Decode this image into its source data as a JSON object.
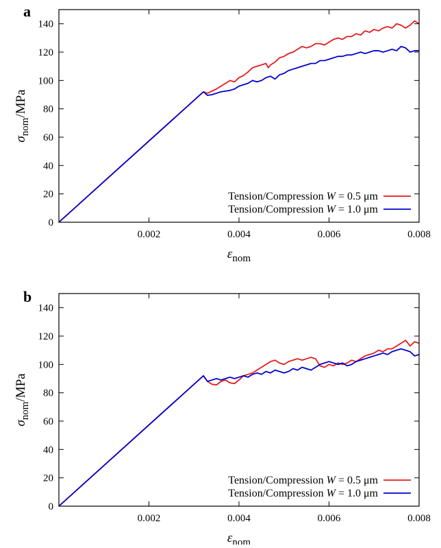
{
  "chart_data": [
    {
      "panel_label": "a",
      "type": "line",
      "xlabel": "ε_nom",
      "ylabel": "σ_nom/MPa",
      "xlim": [
        0,
        0.008
      ],
      "ylim": [
        0,
        150
      ],
      "x_ticks": [
        0.002,
        0.004,
        0.006,
        0.008
      ],
      "x_tick_labels": [
        "0.002",
        "0.004",
        "0.006",
        "0.008"
      ],
      "y_ticks": [
        0,
        20,
        40,
        60,
        80,
        100,
        120,
        140
      ],
      "y_tick_labels": [
        "0",
        "20",
        "40",
        "60",
        "80",
        "100",
        "120",
        "140"
      ],
      "legend_position": "bottom-right",
      "grid": false,
      "series": [
        {
          "name": "Tension/Compression W = 0.5 μm",
          "color": "#e41a1c",
          "points": [
            [
              0,
              0
            ],
            [
              0.00321,
              92
            ],
            [
              0.0033,
              91
            ],
            [
              0.0034,
              92.5
            ],
            [
              0.0035,
              94
            ],
            [
              0.0036,
              96
            ],
            [
              0.0037,
              98
            ],
            [
              0.0038,
              100
            ],
            [
              0.0039,
              99
            ],
            [
              0.004,
              102
            ],
            [
              0.0041,
              103.5
            ],
            [
              0.0042,
              106
            ],
            [
              0.0043,
              109
            ],
            [
              0.0044,
              110
            ],
            [
              0.0045,
              111
            ],
            [
              0.0046,
              112
            ],
            [
              0.00465,
              109
            ],
            [
              0.0047,
              111
            ],
            [
              0.0048,
              113
            ],
            [
              0.0049,
              116
            ],
            [
              0.005,
              117
            ],
            [
              0.0051,
              119
            ],
            [
              0.0052,
              120
            ],
            [
              0.0053,
              122
            ],
            [
              0.0054,
              124
            ],
            [
              0.0055,
              123
            ],
            [
              0.0056,
              124
            ],
            [
              0.0057,
              126
            ],
            [
              0.0058,
              126
            ],
            [
              0.0059,
              125
            ],
            [
              0.006,
              127
            ],
            [
              0.0061,
              129
            ],
            [
              0.0062,
              130
            ],
            [
              0.0063,
              129
            ],
            [
              0.0064,
              131
            ],
            [
              0.0065,
              131
            ],
            [
              0.0066,
              133
            ],
            [
              0.0067,
              132
            ],
            [
              0.0068,
              135
            ],
            [
              0.0069,
              134
            ],
            [
              0.007,
              136
            ],
            [
              0.0071,
              135
            ],
            [
              0.0072,
              137
            ],
            [
              0.0073,
              138
            ],
            [
              0.0074,
              137
            ],
            [
              0.0075,
              140
            ],
            [
              0.0076,
              139
            ],
            [
              0.0077,
              137
            ],
            [
              0.0078,
              139
            ],
            [
              0.0079,
              142
            ],
            [
              0.008,
              140
            ]
          ]
        },
        {
          "name": "Tension/Compression W = 1.0 μm",
          "color": "#0000cc",
          "points": [
            [
              0,
              0
            ],
            [
              0.00321,
              92
            ],
            [
              0.0033,
              89.5
            ],
            [
              0.0034,
              90
            ],
            [
              0.0035,
              91
            ],
            [
              0.0036,
              92
            ],
            [
              0.0037,
              92.5
            ],
            [
              0.0038,
              93
            ],
            [
              0.0039,
              94
            ],
            [
              0.004,
              96
            ],
            [
              0.0041,
              97
            ],
            [
              0.0042,
              98
            ],
            [
              0.0043,
              100
            ],
            [
              0.0044,
              99
            ],
            [
              0.0045,
              100
            ],
            [
              0.0046,
              102
            ],
            [
              0.0047,
              103
            ],
            [
              0.0048,
              101
            ],
            [
              0.0049,
              104
            ],
            [
              0.005,
              105
            ],
            [
              0.0051,
              107
            ],
            [
              0.0052,
              108
            ],
            [
              0.0053,
              109
            ],
            [
              0.0054,
              110
            ],
            [
              0.0055,
              111
            ],
            [
              0.0056,
              112
            ],
            [
              0.0057,
              112
            ],
            [
              0.0058,
              114
            ],
            [
              0.0059,
              114
            ],
            [
              0.006,
              115
            ],
            [
              0.0061,
              116
            ],
            [
              0.0062,
              117
            ],
            [
              0.0063,
              117
            ],
            [
              0.0064,
              118
            ],
            [
              0.0065,
              118
            ],
            [
              0.0066,
              119
            ],
            [
              0.0067,
              120
            ],
            [
              0.0068,
              119
            ],
            [
              0.0069,
              120
            ],
            [
              0.007,
              121
            ],
            [
              0.0071,
              121
            ],
            [
              0.0072,
              120
            ],
            [
              0.0073,
              121
            ],
            [
              0.0074,
              122
            ],
            [
              0.0075,
              121
            ],
            [
              0.0076,
              124
            ],
            [
              0.0077,
              123
            ],
            [
              0.0078,
              120
            ],
            [
              0.0079,
              121
            ],
            [
              0.008,
              121
            ]
          ]
        }
      ]
    },
    {
      "panel_label": "b",
      "type": "line",
      "xlabel": "ε_nom",
      "ylabel": "σ_nom/MPa",
      "xlim": [
        0,
        0.008
      ],
      "ylim": [
        0,
        150
      ],
      "x_ticks": [
        0.002,
        0.004,
        0.006,
        0.008
      ],
      "x_tick_labels": [
        "0.002",
        "0.004",
        "0.006",
        "0.008"
      ],
      "y_ticks": [
        0,
        20,
        40,
        60,
        80,
        100,
        120,
        140
      ],
      "y_tick_labels": [
        "0",
        "20",
        "40",
        "60",
        "80",
        "100",
        "120",
        "140"
      ],
      "legend_position": "bottom-right",
      "grid": false,
      "series": [
        {
          "name": "Tension/Compression W = 0.5 μm",
          "color": "#e41a1c",
          "points": [
            [
              0,
              0
            ],
            [
              0.00321,
              92
            ],
            [
              0.0033,
              88
            ],
            [
              0.0034,
              86
            ],
            [
              0.0035,
              85.5
            ],
            [
              0.0036,
              88
            ],
            [
              0.0037,
              89
            ],
            [
              0.0038,
              87
            ],
            [
              0.0039,
              86.5
            ],
            [
              0.004,
              89
            ],
            [
              0.0041,
              92
            ],
            [
              0.0042,
              93
            ],
            [
              0.0043,
              94
            ],
            [
              0.0044,
              96
            ],
            [
              0.0045,
              98
            ],
            [
              0.0046,
              100
            ],
            [
              0.0047,
              102
            ],
            [
              0.0048,
              103
            ],
            [
              0.0049,
              101
            ],
            [
              0.005,
              100
            ],
            [
              0.0051,
              102
            ],
            [
              0.0052,
              103
            ],
            [
              0.0053,
              104
            ],
            [
              0.0054,
              103
            ],
            [
              0.0055,
              104
            ],
            [
              0.0056,
              105
            ],
            [
              0.0057,
              104
            ],
            [
              0.0058,
              99
            ],
            [
              0.0059,
              98
            ],
            [
              0.006,
              100
            ],
            [
              0.0061,
              99
            ],
            [
              0.0062,
              101
            ],
            [
              0.0063,
              100
            ],
            [
              0.0064,
              101
            ],
            [
              0.0065,
              103
            ],
            [
              0.0066,
              102
            ],
            [
              0.0067,
              104
            ],
            [
              0.0068,
              106
            ],
            [
              0.0069,
              107
            ],
            [
              0.007,
              108
            ],
            [
              0.0071,
              110
            ],
            [
              0.0072,
              109
            ],
            [
              0.0073,
              111
            ],
            [
              0.0074,
              111
            ],
            [
              0.0075,
              113
            ],
            [
              0.0076,
              115
            ],
            [
              0.0077,
              117
            ],
            [
              0.0078,
              113
            ],
            [
              0.0079,
              116
            ],
            [
              0.008,
              115
            ]
          ]
        },
        {
          "name": "Tension/Compression W = 1.0 μm",
          "color": "#0000cc",
          "points": [
            [
              0,
              0
            ],
            [
              0.00321,
              92
            ],
            [
              0.0033,
              88
            ],
            [
              0.0034,
              89
            ],
            [
              0.0035,
              90
            ],
            [
              0.0036,
              89
            ],
            [
              0.0037,
              90
            ],
            [
              0.0038,
              91
            ],
            [
              0.0039,
              90
            ],
            [
              0.004,
              91
            ],
            [
              0.0041,
              92
            ],
            [
              0.0042,
              91
            ],
            [
              0.0043,
              93
            ],
            [
              0.0044,
              94
            ],
            [
              0.0045,
              93
            ],
            [
              0.0046,
              95
            ],
            [
              0.0047,
              94
            ],
            [
              0.0048,
              96
            ],
            [
              0.0049,
              95
            ],
            [
              0.005,
              94
            ],
            [
              0.0051,
              95
            ],
            [
              0.0052,
              97
            ],
            [
              0.0053,
              96
            ],
            [
              0.0054,
              98
            ],
            [
              0.0055,
              97
            ],
            [
              0.0056,
              96
            ],
            [
              0.0057,
              98
            ],
            [
              0.0058,
              100
            ],
            [
              0.0059,
              101
            ],
            [
              0.006,
              102
            ],
            [
              0.0061,
              101
            ],
            [
              0.0062,
              100
            ],
            [
              0.0063,
              101
            ],
            [
              0.0064,
              99
            ],
            [
              0.0065,
              100
            ],
            [
              0.0066,
              102
            ],
            [
              0.0067,
              103
            ],
            [
              0.0068,
              104
            ],
            [
              0.0069,
              105
            ],
            [
              0.007,
              106
            ],
            [
              0.0071,
              107
            ],
            [
              0.0072,
              108
            ],
            [
              0.0073,
              107
            ],
            [
              0.0074,
              109
            ],
            [
              0.0075,
              110
            ],
            [
              0.0076,
              111
            ],
            [
              0.0077,
              110
            ],
            [
              0.0078,
              109
            ],
            [
              0.0079,
              106
            ],
            [
              0.008,
              107
            ]
          ]
        }
      ]
    }
  ]
}
